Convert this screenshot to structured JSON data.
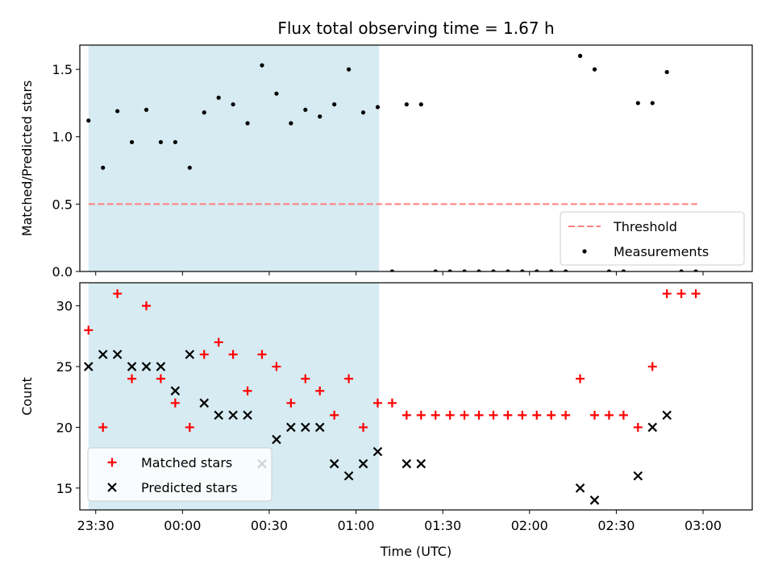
{
  "chart_data": {
    "title": "Flux total observing time = 1.67 h",
    "x_unit": "minutes after 23:00 UTC",
    "xlabel": "Time (UTC)",
    "x_ticks": [
      {
        "value": 30,
        "label": "23:30"
      },
      {
        "value": 60,
        "label": "00:00"
      },
      {
        "value": 90,
        "label": "00:30"
      },
      {
        "value": 120,
        "label": "01:00"
      },
      {
        "value": 150,
        "label": "01:30"
      },
      {
        "value": 180,
        "label": "02:00"
      },
      {
        "value": 210,
        "label": "02:30"
      },
      {
        "value": 240,
        "label": "03:00"
      }
    ],
    "xlim": [
      24.5,
      257
    ],
    "shaded_span": {
      "start": 27.5,
      "end": 128,
      "color": "#add8e6"
    },
    "panels": [
      {
        "type": "scatter",
        "ylabel": "Matched/Predicted stars",
        "ylim": [
          0,
          1.68
        ],
        "y_ticks": [
          0.0,
          0.5,
          1.0,
          1.5
        ],
        "y_tick_labels": [
          "0.0",
          "0.5",
          "1.0",
          "1.5"
        ],
        "threshold": {
          "value": 0.5,
          "x_start": 27.5,
          "x_end": 238,
          "color": "#ff7f7f"
        },
        "legend": {
          "position": "lower right",
          "entries": [
            "Threshold",
            "Measurements"
          ]
        },
        "series": [
          {
            "name": "Measurements",
            "marker": "dot",
            "color": "#000000",
            "points": [
              [
                27.5,
                1.12
              ],
              [
                32.5,
                0.77
              ],
              [
                37.5,
                1.19
              ],
              [
                42.5,
                0.96
              ],
              [
                47.5,
                1.2
              ],
              [
                52.5,
                0.96
              ],
              [
                57.5,
                0.96
              ],
              [
                62.5,
                0.77
              ],
              [
                67.5,
                1.18
              ],
              [
                72.5,
                1.29
              ],
              [
                77.5,
                1.24
              ],
              [
                82.5,
                1.1
              ],
              [
                87.5,
                1.53
              ],
              [
                92.5,
                1.32
              ],
              [
                97.5,
                1.1
              ],
              [
                102.5,
                1.2
              ],
              [
                107.5,
                1.15
              ],
              [
                112.5,
                1.24
              ],
              [
                117.5,
                1.5
              ],
              [
                122.5,
                1.18
              ],
              [
                127.5,
                1.22
              ],
              [
                132.5,
                0.0
              ],
              [
                137.5,
                1.24
              ],
              [
                142.5,
                1.24
              ],
              [
                147.5,
                0.0
              ],
              [
                152.5,
                0.0
              ],
              [
                157.5,
                0.0
              ],
              [
                162.5,
                0.0
              ],
              [
                167.5,
                0.0
              ],
              [
                172.5,
                0.0
              ],
              [
                177.5,
                0.0
              ],
              [
                182.5,
                0.0
              ],
              [
                187.5,
                0.0
              ],
              [
                192.5,
                0.0
              ],
              [
                197.5,
                1.6
              ],
              [
                202.5,
                1.5
              ],
              [
                207.5,
                0.0
              ],
              [
                212.5,
                0.0
              ],
              [
                217.5,
                1.25
              ],
              [
                222.5,
                1.25
              ],
              [
                227.5,
                1.48
              ],
              [
                232.5,
                0.0
              ],
              [
                237.5,
                0.0
              ]
            ]
          }
        ]
      },
      {
        "type": "scatter",
        "ylabel": "Count",
        "ylim": [
          13.2,
          31.9
        ],
        "y_ticks": [
          15,
          20,
          25,
          30
        ],
        "y_tick_labels": [
          "15",
          "20",
          "25",
          "30"
        ],
        "legend": {
          "position": "lower left",
          "entries": [
            "Matched stars",
            "Predicted stars"
          ]
        },
        "series": [
          {
            "name": "Matched stars",
            "marker": "plus",
            "color": "#ff0000",
            "points": [
              [
                27.5,
                28
              ],
              [
                32.5,
                20
              ],
              [
                37.5,
                31
              ],
              [
                42.5,
                24
              ],
              [
                47.5,
                30
              ],
              [
                52.5,
                24
              ],
              [
                57.5,
                22
              ],
              [
                62.5,
                20
              ],
              [
                67.5,
                26
              ],
              [
                72.5,
                27
              ],
              [
                77.5,
                26
              ],
              [
                82.5,
                23
              ],
              [
                87.5,
                26
              ],
              [
                92.5,
                25
              ],
              [
                97.5,
                22
              ],
              [
                102.5,
                24
              ],
              [
                107.5,
                23
              ],
              [
                112.5,
                21
              ],
              [
                117.5,
                24
              ],
              [
                122.5,
                20
              ],
              [
                127.5,
                22
              ],
              [
                132.5,
                22
              ],
              [
                137.5,
                21
              ],
              [
                142.5,
                21
              ],
              [
                147.5,
                21
              ],
              [
                152.5,
                21
              ],
              [
                157.5,
                21
              ],
              [
                162.5,
                21
              ],
              [
                167.5,
                21
              ],
              [
                172.5,
                21
              ],
              [
                177.5,
                21
              ],
              [
                182.5,
                21
              ],
              [
                187.5,
                21
              ],
              [
                192.5,
                21
              ],
              [
                197.5,
                24
              ],
              [
                202.5,
                21
              ],
              [
                207.5,
                21
              ],
              [
                212.5,
                21
              ],
              [
                217.5,
                20
              ],
              [
                222.5,
                25
              ],
              [
                227.5,
                31
              ],
              [
                232.5,
                31
              ],
              [
                237.5,
                31
              ]
            ]
          },
          {
            "name": "Predicted stars",
            "marker": "x",
            "color": "#000000",
            "points": [
              [
                27.5,
                25
              ],
              [
                32.5,
                26
              ],
              [
                37.5,
                26
              ],
              [
                42.5,
                25
              ],
              [
                47.5,
                25
              ],
              [
                52.5,
                25
              ],
              [
                57.5,
                23
              ],
              [
                62.5,
                26
              ],
              [
                67.5,
                22
              ],
              [
                72.5,
                21
              ],
              [
                77.5,
                21
              ],
              [
                82.5,
                21
              ],
              [
                87.5,
                17
              ],
              [
                92.5,
                19
              ],
              [
                97.5,
                20
              ],
              [
                102.5,
                20
              ],
              [
                107.5,
                20
              ],
              [
                112.5,
                17
              ],
              [
                117.5,
                16
              ],
              [
                122.5,
                17
              ],
              [
                127.5,
                18
              ],
              [
                137.5,
                17
              ],
              [
                142.5,
                17
              ],
              [
                197.5,
                15
              ],
              [
                202.5,
                14
              ],
              [
                217.5,
                16
              ],
              [
                222.5,
                20
              ],
              [
                227.5,
                21
              ]
            ]
          }
        ]
      }
    ]
  }
}
